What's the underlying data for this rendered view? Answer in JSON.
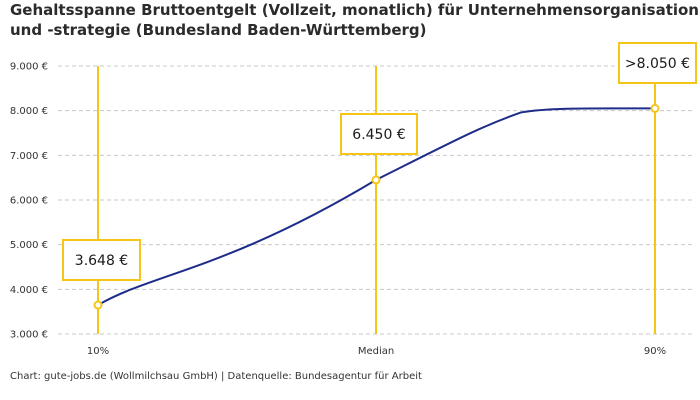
{
  "chart_data": {
    "type": "line",
    "title_lines": [
      "Gehaltsspanne Bruttoentgelt (Vollzeit, monatlich) für Unternehmensorganisation",
      "und -strategie (Bundesland Baden-Württemberg)"
    ],
    "categories": [
      "10%",
      "Median",
      "90%"
    ],
    "points": [
      {
        "category": "10%",
        "value": 3648,
        "label": "3.648 €"
      },
      {
        "category": "Median",
        "value": 6450,
        "label": "6.450 €"
      },
      {
        "category": "90%",
        "value": 8050,
        "label": ">8.050 €"
      }
    ],
    "y_ticks": [
      {
        "value": 3000,
        "label": "3.000 €"
      },
      {
        "value": 4000,
        "label": "4.000 €"
      },
      {
        "value": 5000,
        "label": "5.000 €"
      },
      {
        "value": 6000,
        "label": "6.000 €"
      },
      {
        "value": 7000,
        "label": "7.000 €"
      },
      {
        "value": 8000,
        "label": "8.000 €"
      },
      {
        "value": 9000,
        "label": "9.000 €"
      }
    ],
    "ylim": [
      3000,
      9000
    ],
    "grid": true,
    "colors": {
      "line": "#1f2d8a",
      "accent": "#f5c518",
      "grid": "#c8c8c8"
    }
  },
  "source": "Chart: gute-jobs.de (Wollmilchsau GmbH) | Datenquelle: Bundesagentur für Arbeit"
}
